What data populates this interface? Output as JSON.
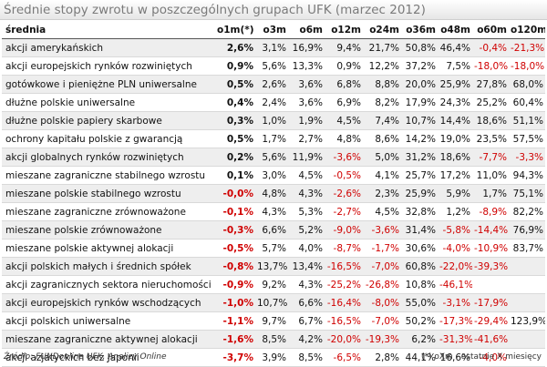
{
  "title": "Średnie stopy zwrotu w poszczególnych grupach UFK (marzec 2012)",
  "columns": [
    "średnia",
    "o1m(*)",
    "o3m",
    "o6m",
    "o12m",
    "o24m",
    "o36m",
    "o48m",
    "o60m",
    "o120m"
  ],
  "rows": [
    {
      "name": "akcji amerykańskich",
      "values": [
        "2,6%",
        "3,1%",
        "16,9%",
        "9,4%",
        "21,7%",
        "50,8%",
        "46,4%",
        "-0,4%",
        "-21,3%"
      ]
    },
    {
      "name": "akcji europejskich rynków rozwiniętych",
      "values": [
        "0,9%",
        "5,6%",
        "13,3%",
        "0,9%",
        "12,2%",
        "37,2%",
        "7,5%",
        "-18,0%",
        "-18,0%"
      ]
    },
    {
      "name": "gotówkowe i pieniężne PLN uniwersalne",
      "values": [
        "0,5%",
        "2,6%",
        "3,6%",
        "6,8%",
        "8,8%",
        "20,0%",
        "25,9%",
        "27,8%",
        "68,0%"
      ]
    },
    {
      "name": "dłużne polskie uniwersalne",
      "values": [
        "0,4%",
        "2,4%",
        "3,6%",
        "6,9%",
        "8,2%",
        "17,9%",
        "24,3%",
        "25,2%",
        "60,4%"
      ]
    },
    {
      "name": "dłużne polskie papiery skarbowe",
      "values": [
        "0,3%",
        "1,0%",
        "1,9%",
        "4,5%",
        "7,4%",
        "10,7%",
        "14,4%",
        "18,6%",
        "51,1%"
      ]
    },
    {
      "name": "ochrony kapitału polskie z gwarancją",
      "values": [
        "0,5%",
        "1,7%",
        "2,7%",
        "4,8%",
        "8,6%",
        "14,2%",
        "19,0%",
        "23,5%",
        "57,5%"
      ]
    },
    {
      "name": "akcji globalnych rynków rozwiniętych",
      "values": [
        "0,2%",
        "5,6%",
        "11,9%",
        "-3,6%",
        "5,0%",
        "31,2%",
        "18,6%",
        "-7,7%",
        "-3,3%"
      ]
    },
    {
      "name": "mieszane zagraniczne stabilnego wzrostu",
      "values": [
        "0,1%",
        "3,0%",
        "4,5%",
        "-0,5%",
        "4,1%",
        "25,7%",
        "17,2%",
        "11,0%",
        "94,3%"
      ]
    },
    {
      "name": "mieszane polskie stabilnego wzrostu",
      "values": [
        "-0,0%",
        "4,8%",
        "4,3%",
        "-2,6%",
        "2,3%",
        "25,9%",
        "5,9%",
        "1,7%",
        "75,1%"
      ]
    },
    {
      "name": "mieszane zagraniczne zrównoważone",
      "values": [
        "-0,1%",
        "4,3%",
        "5,3%",
        "-2,7%",
        "4,5%",
        "32,8%",
        "1,2%",
        "-8,9%",
        "82,2%"
      ]
    },
    {
      "name": "mieszane polskie zrównoważone",
      "values": [
        "-0,3%",
        "6,6%",
        "5,2%",
        "-9,0%",
        "-3,6%",
        "31,4%",
        "-5,8%",
        "-14,4%",
        "76,9%"
      ]
    },
    {
      "name": "mieszane polskie aktywnej alokacji",
      "values": [
        "-0,5%",
        "5,7%",
        "4,0%",
        "-8,7%",
        "-1,7%",
        "30,6%",
        "-4,0%",
        "-10,9%",
        "83,7%"
      ]
    },
    {
      "name": "akcji polskich małych i średnich spółek",
      "values": [
        "-0,8%",
        "13,7%",
        "13,4%",
        "-16,5%",
        "-7,0%",
        "60,8%",
        "-22,0%",
        "-39,3%",
        ""
      ]
    },
    {
      "name": "akcji zagranicznych sektora nieruchomości",
      "values": [
        "-0,9%",
        "9,2%",
        "4,3%",
        "-25,2%",
        "-26,8%",
        "10,8%",
        "-46,1%",
        "",
        ""
      ]
    },
    {
      "name": "akcji europejskich rynków wschodzących",
      "values": [
        "-1,0%",
        "10,7%",
        "6,6%",
        "-16,4%",
        "-8,0%",
        "55,0%",
        "-3,1%",
        "-17,9%",
        ""
      ]
    },
    {
      "name": "akcji polskich uniwersalne",
      "values": [
        "-1,1%",
        "9,7%",
        "6,7%",
        "-16,5%",
        "-7,0%",
        "50,2%",
        "-17,3%",
        "-29,4%",
        "123,9%"
      ]
    },
    {
      "name": "mieszane zagraniczne aktywnej alokacji",
      "values": [
        "-1,6%",
        "8,5%",
        "4,2%",
        "-20,0%",
        "-19,3%",
        "6,2%",
        "-31,3%",
        "-41,6%",
        ""
      ]
    },
    {
      "name": "akcji azjatyckich bez Japonii",
      "values": [
        "-3,7%",
        "3,9%",
        "8,5%",
        "-6,5%",
        "2,8%",
        "44,1%",
        "16,6%",
        "-4,0%",
        ""
      ]
    }
  ],
  "footer": {
    "source": "Źródło: FUNDonline UFK, Analizy Online",
    "note": "(*) oXm - ostatnie X miesięcy"
  },
  "colors": {
    "negative": "#d00000",
    "title_text": "#7a7a7a",
    "stripe": "#eeeeee"
  }
}
